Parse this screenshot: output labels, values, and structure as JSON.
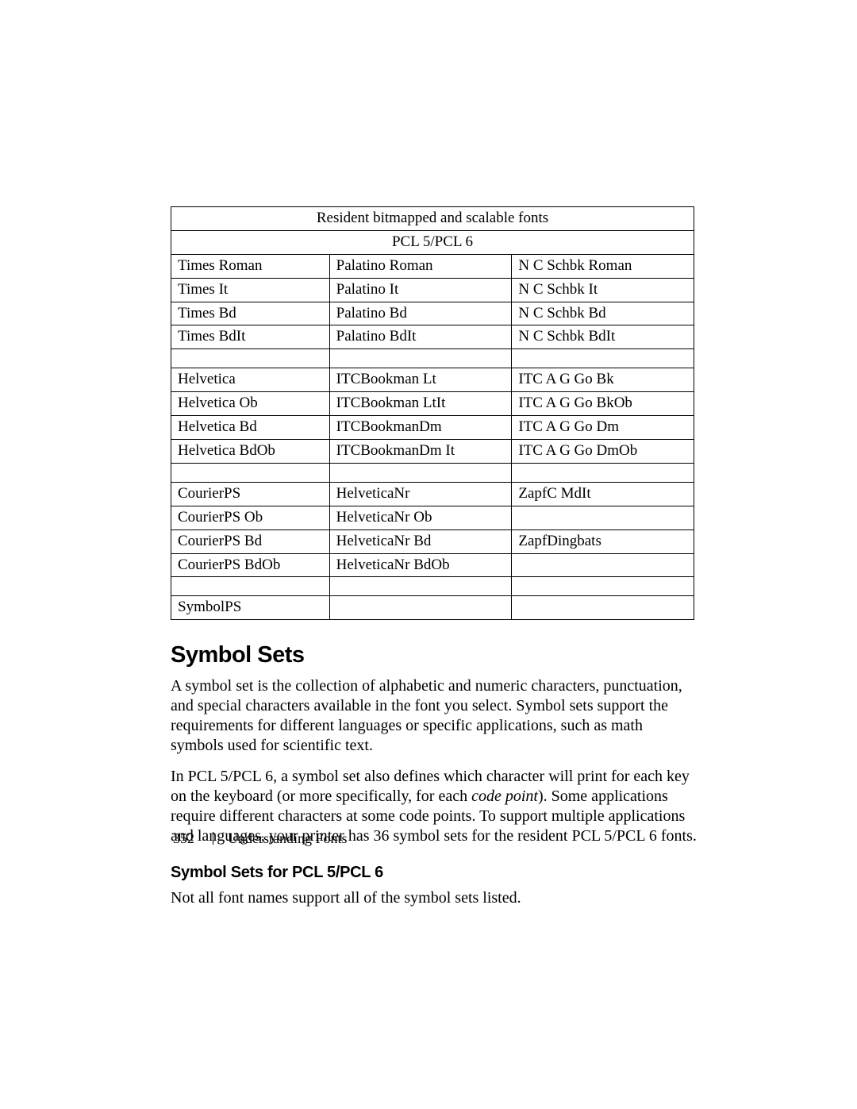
{
  "table": {
    "header1": "Resident bitmapped and scalable fonts",
    "header2": "PCL 5/PCL 6",
    "rows": [
      [
        "Times Roman",
        "Palatino Roman",
        "N C Schbk Roman"
      ],
      [
        "Times It",
        "Palatino It",
        "N C Schbk It"
      ],
      [
        "Times Bd",
        "Palatino Bd",
        "N C Schbk Bd"
      ],
      [
        "Times BdIt",
        "Palatino BdIt",
        "N C Schbk BdIt"
      ],
      [
        "",
        "",
        ""
      ],
      [
        "Helvetica",
        "ITCBookman Lt",
        "ITC A G Go Bk"
      ],
      [
        "Helvetica Ob",
        "ITCBookman LtIt",
        "ITC A G Go BkOb"
      ],
      [
        "Helvetica Bd",
        "ITCBookmanDm",
        "ITC A G Go Dm"
      ],
      [
        "Helvetica BdOb",
        "ITCBookmanDm It",
        "ITC A G Go DmOb"
      ],
      [
        "",
        "",
        ""
      ],
      [
        "CourierPS",
        "HelveticaNr",
        "ZapfC MdIt"
      ],
      [
        "CourierPS Ob",
        "HelveticaNr Ob",
        ""
      ],
      [
        "CourierPS Bd",
        "HelveticaNr Bd",
        "ZapfDingbats"
      ],
      [
        "CourierPS BdOb",
        "HelveticaNr BdOb",
        ""
      ],
      [
        "",
        "",
        ""
      ],
      [
        "SymbolPS",
        "",
        ""
      ]
    ]
  },
  "section": {
    "heading": "Symbol Sets",
    "p1": "A symbol set is the collection of alphabetic and numeric characters, punctuation, and special characters available in the font you select. Symbol sets support the requirements for different languages or specific applications, such as math symbols used for scientific text.",
    "p2_a": "In PCL 5/PCL 6, a symbol set also defines which character will print for each key on the keyboard (or more specifically, for each ",
    "p2_i": "code point",
    "p2_b": "). Some applications require different characters at some code points. To support multiple applications and languages, your printer has 36 symbol sets for the resident PCL 5/PCL 6 fonts.",
    "subheading": "Symbol Sets for PCL 5/PCL 6",
    "p3": "Not all font names support all of the symbol sets listed."
  },
  "footer": {
    "page_number": "352",
    "chapter": "Understanding Fonts"
  },
  "style": {
    "page_bg": "#ffffff",
    "text_color": "#000000",
    "border_color": "#000000",
    "body_font": "Times New Roman",
    "heading_font": "Arial"
  }
}
